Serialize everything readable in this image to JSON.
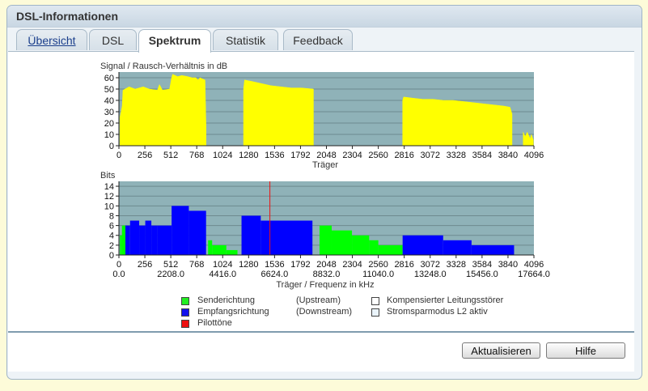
{
  "panel": {
    "title": "DSL-Informationen"
  },
  "tabs": [
    {
      "label": "Übersicht",
      "underline": true,
      "active": false
    },
    {
      "label": "DSL",
      "active": false
    },
    {
      "label": "Spektrum",
      "active": true
    },
    {
      "label": "Statistik",
      "active": false
    },
    {
      "label": "Feedback",
      "active": false
    }
  ],
  "chart_data": [
    {
      "type": "area",
      "title": "Signal / Rausch-Verhältnis in dB",
      "xlabel": "Träger",
      "ylabel": "",
      "xlim": [
        0,
        4096
      ],
      "ylim": [
        0,
        65
      ],
      "x_ticks": [
        0,
        256,
        512,
        768,
        1024,
        1280,
        1536,
        1792,
        2048,
        2304,
        2560,
        2816,
        3072,
        3328,
        3584,
        3840,
        4096
      ],
      "y_ticks": [
        0,
        10,
        20,
        30,
        40,
        50,
        60
      ],
      "grid": true,
      "background_color": "#8fb2b8",
      "fill_color": "#ffff00",
      "segments": [
        {
          "x": [
            10,
            32,
            40,
            100,
            160,
            200,
            240,
            300,
            380,
            400,
            430,
            500,
            520,
            530,
            580,
            620,
            680,
            720,
            760,
            780,
            800,
            850,
            860
          ],
          "y": [
            25,
            35,
            49,
            52,
            50,
            51,
            52,
            50,
            49,
            54,
            49,
            50,
            60,
            63,
            61,
            62,
            61,
            60,
            60,
            58,
            60,
            58,
            16
          ]
        },
        {
          "x": [
            1230,
            1240,
            1300,
            1400,
            1500,
            1600,
            1700,
            1800,
            1920
          ],
          "y": [
            50,
            58,
            57,
            55,
            53,
            52,
            51,
            51,
            50
          ]
        },
        {
          "x": [
            2800,
            2810,
            2900,
            3000,
            3100,
            3200,
            3300,
            3400,
            3500,
            3600,
            3700,
            3800,
            3860,
            3880
          ],
          "y": [
            40,
            43,
            42,
            41,
            41,
            40,
            40,
            39,
            38,
            37,
            36,
            35,
            34,
            28
          ]
        },
        {
          "x": [
            3990,
            4010,
            4030,
            4060,
            4070,
            4090
          ],
          "y": [
            12,
            8,
            12,
            6,
            10,
            5
          ]
        }
      ]
    },
    {
      "type": "bar",
      "title": "Bits",
      "xlabel": "Träger / Frequenz in kHz",
      "ylabel": "",
      "xlim": [
        0,
        4096
      ],
      "ylim": [
        0,
        15
      ],
      "x_ticks": [
        0,
        256,
        512,
        768,
        1024,
        1280,
        1536,
        1792,
        2048,
        2304,
        2560,
        2816,
        3072,
        3328,
        3584,
        3840,
        4096
      ],
      "frequency_ticks": [
        "0.0",
        "2208.0",
        "4416.0",
        "6624.0",
        "8832.0",
        "11040.0",
        "13248.0",
        "15456.0",
        "17664.0"
      ],
      "y_ticks": [
        0,
        2,
        4,
        6,
        8,
        10,
        12,
        14
      ],
      "grid": true,
      "background_color": "#8fb2b8",
      "pilot_carrier": 1490,
      "series": [
        {
          "name": "Senderichtung",
          "color": "#00ff00",
          "steps": [
            [
              10,
              30,
              4
            ],
            [
              30,
              64,
              6
            ],
            [
              880,
              920,
              3
            ],
            [
              920,
              1060,
              2
            ],
            [
              1060,
              1170,
              1
            ],
            [
              1980,
              2100,
              6
            ],
            [
              2100,
              2300,
              5
            ],
            [
              2300,
              2470,
              4
            ],
            [
              2470,
              2560,
              3
            ],
            [
              2560,
              2800,
              2
            ]
          ]
        },
        {
          "name": "Empfangsrichtung",
          "color": "#0000ff",
          "steps": [
            [
              64,
              110,
              6
            ],
            [
              110,
              200,
              7
            ],
            [
              200,
              260,
              6
            ],
            [
              260,
              320,
              7
            ],
            [
              320,
              380,
              6
            ],
            [
              380,
              520,
              6
            ],
            [
              520,
              690,
              10
            ],
            [
              690,
              860,
              9
            ],
            [
              1210,
              1400,
              8
            ],
            [
              1400,
              1910,
              7
            ],
            [
              2800,
              3200,
              4
            ],
            [
              3200,
              3480,
              3
            ],
            [
              3480,
              3900,
              2
            ]
          ]
        }
      ]
    }
  ],
  "legend": {
    "items": [
      {
        "label": "Senderichtung",
        "color": "#22ee22"
      },
      {
        "label": "Empfangsrichtung",
        "color": "#1111ee"
      },
      {
        "label": "Pilottöne",
        "color": "#ee1111"
      }
    ],
    "directions": [
      "(Upstream)",
      "(Downstream)"
    ],
    "extras": [
      {
        "label": "Kompensierter Leitungsstörer",
        "color": "#ffffff"
      },
      {
        "label": "Stromsparmodus L2 aktiv",
        "color": "#eaf4fb"
      }
    ]
  },
  "buttons": {
    "refresh": "Aktualisieren",
    "help": "Hilfe"
  }
}
